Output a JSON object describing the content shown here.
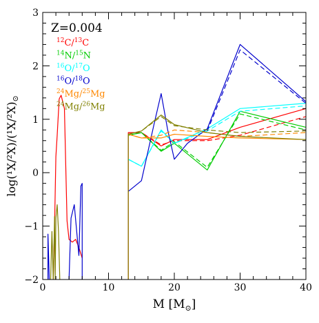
{
  "chart_data": {
    "type": "line",
    "xlabel": "M [M",
    "xlabel_sub": "⊙",
    "xlabel_close": "]",
    "ylabel": "log(¹X/²X)/(¹X/²X)",
    "ylabel_sub": "⊙",
    "xlim": [
      0,
      40
    ],
    "ylim": [
      -2,
      3
    ],
    "x_ticks": [
      0,
      10,
      20,
      30,
      40
    ],
    "y_ticks": [
      -2,
      -1,
      0,
      1,
      2,
      3
    ],
    "x_tick_labels": [
      "0",
      "10",
      "20",
      "30",
      "40"
    ],
    "y_tick_labels": [
      "−2",
      "−1",
      "0",
      "1",
      "2",
      "3"
    ],
    "grid": false,
    "legend_position": "top-left",
    "annotation": "Z=0.004",
    "series": [
      {
        "name": "12C/13C",
        "iso1_mass": "12",
        "el1": "C",
        "iso2_mass": "13",
        "el2": "C",
        "color": "#ff0000",
        "segments": [
          {
            "dash": false,
            "points": [
              [
                1.6,
                -2.0
              ],
              [
                1.8,
                -1.0
              ],
              [
                2.0,
                0.3
              ],
              [
                2.2,
                0.7
              ],
              [
                2.5,
                1.38
              ],
              [
                2.8,
                1.45
              ],
              [
                3.3,
                1.2
              ],
              [
                3.7,
                -0.9
              ],
              [
                4.0,
                -1.25
              ],
              [
                4.5,
                -1.3
              ],
              [
                5.0,
                -1.25
              ],
              [
                5.5,
                -1.4
              ],
              [
                6.0,
                -1.6
              ]
            ]
          },
          {
            "dash": false,
            "points": [
              [
                13.0,
                -2.0
              ],
              [
                13.0,
                0.75
              ],
              [
                15.0,
                0.75
              ],
              [
                18.0,
                0.5
              ],
              [
                20.0,
                0.62
              ],
              [
                25.0,
                0.62
              ],
              [
                30.0,
                0.85
              ],
              [
                40.0,
                1.2
              ]
            ]
          },
          {
            "dash": true,
            "points": [
              [
                13.0,
                0.75
              ],
              [
                15.0,
                0.75
              ],
              [
                18.0,
                0.52
              ],
              [
                20.0,
                0.6
              ],
              [
                25.0,
                0.6
              ],
              [
                30.0,
                0.7
              ],
              [
                40.0,
                1.05
              ]
            ]
          }
        ]
      },
      {
        "name": "14N/15N",
        "iso1_mass": "14",
        "el1": "N",
        "iso2_mass": "15",
        "el2": "N",
        "color": "#00cc00",
        "segments": [
          {
            "dash": false,
            "points": [
              [
                13.0,
                0.7
              ],
              [
                15.0,
                0.75
              ],
              [
                18.0,
                0.4
              ],
              [
                20.0,
                0.55
              ],
              [
                25.0,
                0.05
              ],
              [
                30.0,
                1.15
              ],
              [
                40.0,
                0.85
              ]
            ]
          },
          {
            "dash": true,
            "points": [
              [
                13.0,
                0.7
              ],
              [
                15.0,
                0.75
              ],
              [
                18.0,
                0.42
              ],
              [
                20.0,
                0.58
              ],
              [
                25.0,
                0.1
              ],
              [
                30.0,
                1.1
              ],
              [
                40.0,
                0.8
              ]
            ]
          }
        ]
      },
      {
        "name": "16O/17O",
        "iso1_mass": "16",
        "el1": "O",
        "iso2_mass": "17",
        "el2": "O",
        "color": "#00ffff",
        "segments": [
          {
            "dash": false,
            "points": [
              [
                13.0,
                0.25
              ],
              [
                15.0,
                0.12
              ],
              [
                18.0,
                0.8
              ],
              [
                20.0,
                0.55
              ],
              [
                25.0,
                0.82
              ],
              [
                30.0,
                1.2
              ],
              [
                40.0,
                1.3
              ]
            ]
          },
          {
            "dash": true,
            "points": [
              [
                13.0,
                0.25
              ],
              [
                15.0,
                0.12
              ],
              [
                18.0,
                0.78
              ],
              [
                20.0,
                0.55
              ],
              [
                25.0,
                0.78
              ],
              [
                30.0,
                1.15
              ],
              [
                40.0,
                1.25
              ]
            ]
          }
        ]
      },
      {
        "name": "16O/18O",
        "iso1_mass": "16",
        "el1": "O",
        "iso2_mass": "18",
        "el2": "O",
        "color": "#0000cc",
        "segments": [
          {
            "dash": false,
            "points": [
              [
                0.8,
                -2.0
              ],
              [
                0.8,
                -1.15
              ],
              [
                1.0,
                -2.0
              ]
            ]
          },
          {
            "dash": false,
            "points": [
              [
                4.0,
                -2.0
              ],
              [
                4.3,
                -0.85
              ],
              [
                4.8,
                -0.6
              ],
              [
                5.5,
                -1.55
              ],
              [
                5.8,
                -0.25
              ],
              [
                6.0,
                -0.2
              ],
              [
                6.0,
                -2.0
              ]
            ]
          },
          {
            "dash": false,
            "points": [
              [
                13.0,
                -0.35
              ],
              [
                15.0,
                -0.15
              ],
              [
                17.0,
                0.95
              ],
              [
                18.0,
                1.48
              ],
              [
                19.0,
                0.8
              ],
              [
                20.0,
                0.25
              ],
              [
                22.0,
                0.55
              ],
              [
                25.0,
                0.82
              ],
              [
                30.0,
                2.4
              ],
              [
                40.0,
                1.33
              ]
            ]
          },
          {
            "dash": true,
            "points": [
              [
                25.0,
                0.78
              ],
              [
                30.0,
                2.3
              ],
              [
                40.0,
                1.3
              ]
            ]
          }
        ]
      },
      {
        "name": "24Mg/25Mg",
        "iso1_mass": "24",
        "el1": "Mg",
        "iso2_mass": "25",
        "el2": "Mg",
        "color": "#ff8800",
        "segments": [
          {
            "dash": false,
            "points": [
              [
                13.0,
                0.72
              ],
              [
                15.0,
                0.65
              ],
              [
                18.0,
                0.65
              ],
              [
                20.0,
                0.72
              ],
              [
                25.0,
                0.68
              ],
              [
                30.0,
                0.65
              ],
              [
                40.0,
                0.62
              ]
            ]
          },
          {
            "dash": true,
            "points": [
              [
                13.0,
                0.72
              ],
              [
                15.0,
                0.65
              ],
              [
                18.0,
                0.7
              ],
              [
                20.0,
                0.8
              ],
              [
                25.0,
                0.75
              ],
              [
                30.0,
                0.68
              ],
              [
                40.0,
                0.75
              ]
            ]
          }
        ]
      },
      {
        "name": "24Mg/26Mg",
        "iso1_mass": "24",
        "el1": "Mg",
        "iso2_mass": "26",
        "el2": "Mg",
        "color": "#808000",
        "segments": [
          {
            "dash": false,
            "points": [
              [
                1.2,
                -2.0
              ],
              [
                1.4,
                -1.1
              ],
              [
                1.6,
                -2.0
              ],
              [
                1.8,
                -0.82
              ],
              [
                1.9,
                -2.0
              ],
              [
                2.0,
                -0.85
              ],
              [
                2.2,
                -0.6
              ],
              [
                2.4,
                -1.1
              ],
              [
                2.6,
                -2.0
              ]
            ]
          },
          {
            "dash": false,
            "points": [
              [
                13.0,
                -2.0
              ],
              [
                13.0,
                0.72
              ],
              [
                15.0,
                0.78
              ],
              [
                18.0,
                1.08
              ],
              [
                20.0,
                0.9
              ],
              [
                25.0,
                0.75
              ],
              [
                30.0,
                0.68
              ],
              [
                40.0,
                0.62
              ]
            ]
          },
          {
            "dash": true,
            "points": [
              [
                13.0,
                0.72
              ],
              [
                15.0,
                0.78
              ],
              [
                18.0,
                1.05
              ],
              [
                20.0,
                0.88
              ],
              [
                25.0,
                0.8
              ],
              [
                30.0,
                0.75
              ],
              [
                40.0,
                0.78
              ]
            ]
          }
        ]
      }
    ]
  }
}
